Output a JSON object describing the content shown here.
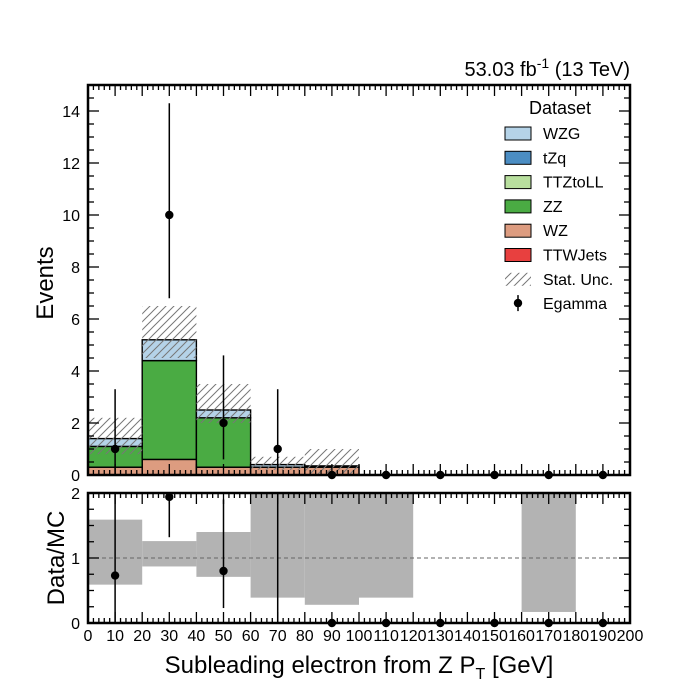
{
  "chart_data": [
    {
      "type": "stacked-histogram",
      "lumi_label": "53.03 fb",
      "lumi_exponent": "-1",
      "energy_label": "(13 TeV)",
      "ylabel": "Events",
      "ylim": [
        0,
        15
      ],
      "yticks": [
        0,
        2,
        4,
        6,
        8,
        10,
        12,
        14
      ],
      "xlim": [
        0,
        200
      ],
      "bin_edges": [
        0,
        20,
        40,
        60,
        80,
        100,
        120,
        140,
        160,
        180,
        200
      ],
      "legend": {
        "title": "Dataset",
        "placement": "top-right",
        "entries": [
          "WZG",
          "tZq",
          "TTZtoLL",
          "ZZ",
          "WZ",
          "TTWJets",
          "Stat. Unc.",
          "Egamma"
        ]
      },
      "series": [
        {
          "name": "TTWJets",
          "color": "#e8403f",
          "values": [
            0.0,
            0.0,
            0.0,
            0.0,
            0.0,
            0.0,
            0.0,
            0.0,
            0.0,
            0.0
          ]
        },
        {
          "name": "WZ",
          "color": "#dd9c80",
          "values": [
            0.3,
            0.6,
            0.3,
            0.3,
            0.3,
            0.0,
            0.0,
            0.0,
            0.0,
            0.0
          ]
        },
        {
          "name": "ZZ",
          "color": "#4aab43",
          "values": [
            0.8,
            3.8,
            1.9,
            0.0,
            0.0,
            0.0,
            0.0,
            0.0,
            0.0,
            0.0
          ]
        },
        {
          "name": "TTZtoLL",
          "color": "#b8df9e",
          "values": [
            0.0,
            0.0,
            0.0,
            0.0,
            0.0,
            0.0,
            0.0,
            0.0,
            0.0,
            0.0
          ]
        },
        {
          "name": "tZq",
          "color": "#4b8dc3",
          "values": [
            0.0,
            0.0,
            0.0,
            0.0,
            0.0,
            0.0,
            0.0,
            0.0,
            0.0,
            0.0
          ]
        },
        {
          "name": "WZG",
          "color": "#b5d3e8",
          "values": [
            0.3,
            0.8,
            0.3,
            0.1,
            0.05,
            0.0,
            0.0,
            0.0,
            0.0,
            0.0
          ]
        }
      ],
      "stat_unc": {
        "name": "Stat. Unc.",
        "low": [
          0.8,
          4.5,
          2.0,
          0.2,
          0.0,
          0.0,
          0.0,
          0.0,
          0.0,
          0.0
        ],
        "high": [
          2.2,
          6.5,
          3.5,
          0.7,
          1.0,
          0.0,
          0.0,
          0.0,
          0.0,
          0.0
        ]
      },
      "data": {
        "name": "Egamma",
        "x": [
          10,
          30,
          50,
          70,
          90,
          110,
          130,
          150,
          170,
          190
        ],
        "y": [
          1,
          10,
          2,
          1,
          0,
          0,
          0,
          0,
          0,
          0
        ],
        "err_low": [
          1.0,
          3.2,
          1.4,
          1.0,
          0,
          0,
          0,
          0,
          0,
          0
        ],
        "err_high": [
          2.3,
          4.3,
          2.6,
          2.3,
          0,
          0,
          0,
          0,
          0,
          0
        ]
      }
    },
    {
      "type": "ratio",
      "ylabel": "Data/MC",
      "xlabel": "Subleading electron from Z  P",
      "xlabel_sub": "T",
      "xlabel_unit": " [GeV]",
      "ylim": [
        0,
        2
      ],
      "yticks": [
        0,
        1,
        2
      ],
      "xlim": [
        0,
        200
      ],
      "xticks": [
        0,
        10,
        20,
        30,
        40,
        50,
        60,
        70,
        80,
        90,
        100,
        110,
        120,
        130,
        140,
        150,
        160,
        170,
        180,
        190,
        200
      ],
      "reference_line": 1,
      "unc_band": {
        "low": [
          0.59,
          0.87,
          0.71,
          0.39,
          0.28,
          0.39,
          null,
          null,
          0.17,
          null
        ],
        "high": [
          1.59,
          1.26,
          1.4,
          2.0,
          2.0,
          2.0,
          null,
          null,
          2.0,
          null
        ]
      },
      "points": {
        "x": [
          10,
          30,
          50,
          70,
          90,
          110,
          130,
          150,
          170,
          190
        ],
        "y": [
          0.73,
          1.94,
          0.8,
          2.3,
          0,
          0,
          0,
          0,
          0,
          0
        ],
        "err_low": [
          0.73,
          0.62,
          0.57,
          2.3,
          0,
          0,
          0,
          0,
          0,
          0
        ],
        "err_high": [
          1.66,
          0.83,
          1.1,
          5.3,
          0,
          0,
          0,
          0,
          0,
          0
        ]
      }
    }
  ]
}
